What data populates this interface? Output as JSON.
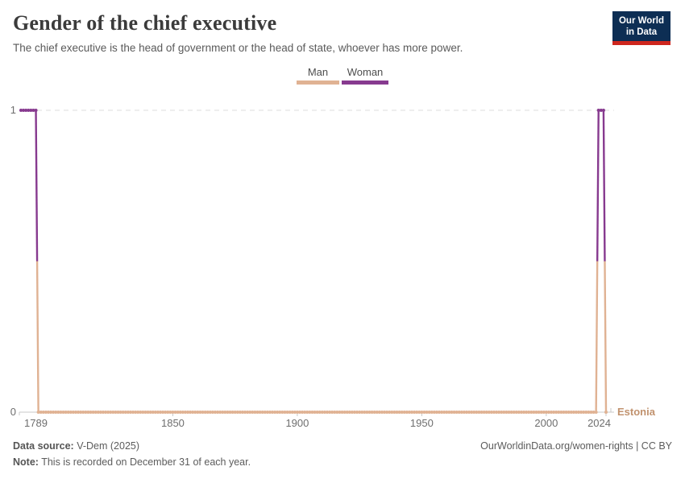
{
  "header": {
    "title": "Gender of the chief executive",
    "subtitle": "The chief executive is the head of government or the head of state, whoever has more power."
  },
  "logo": {
    "line1": "Our World",
    "line2": "in Data",
    "bg_color": "#0d2e54",
    "accent_color": "#ce261e"
  },
  "legend": {
    "items": [
      {
        "label": "Man",
        "color": "#e0b293"
      },
      {
        "label": "Woman",
        "color": "#873a8f"
      }
    ]
  },
  "chart_data": {
    "type": "line",
    "title": "Gender of the chief executive",
    "entity": "Estonia",
    "entity_label_color": "#c1926e",
    "x": {
      "min": 1789,
      "max": 2024,
      "ticks": [
        1789,
        1850,
        1900,
        1950,
        2000,
        2024
      ]
    },
    "y": {
      "min": 0,
      "max": 1,
      "ticks": [
        0,
        1
      ],
      "dashed_gridline_at": 1
    },
    "value_labels": {
      "0": "Man",
      "1": "Woman"
    },
    "colors": {
      "Man": "#e0b293",
      "Woman": "#873a8f"
    },
    "series": [
      {
        "name": "Estonia",
        "runs": [
          {
            "from": 1789,
            "to": 1795,
            "value": 1,
            "category": "Woman"
          },
          {
            "from": 1796,
            "to": 2020,
            "value": 0,
            "category": "Man"
          },
          {
            "from": 2021,
            "to": 2023,
            "value": 1,
            "category": "Woman"
          },
          {
            "from": 2024,
            "to": 2024,
            "value": 0,
            "category": "Man"
          }
        ]
      }
    ],
    "axis_color": "#c8c8c8",
    "grid_color": "#dcdcdc",
    "tick_label_color": "#6e6e6e",
    "marker_every_year": true
  },
  "footer": {
    "source_label": "Data source:",
    "source_value": " V-Dem (2025)",
    "note_label": "Note:",
    "note_value": " This is recorded on December 31 of each year.",
    "right_text": "OurWorldinData.org/women-rights | CC BY"
  }
}
